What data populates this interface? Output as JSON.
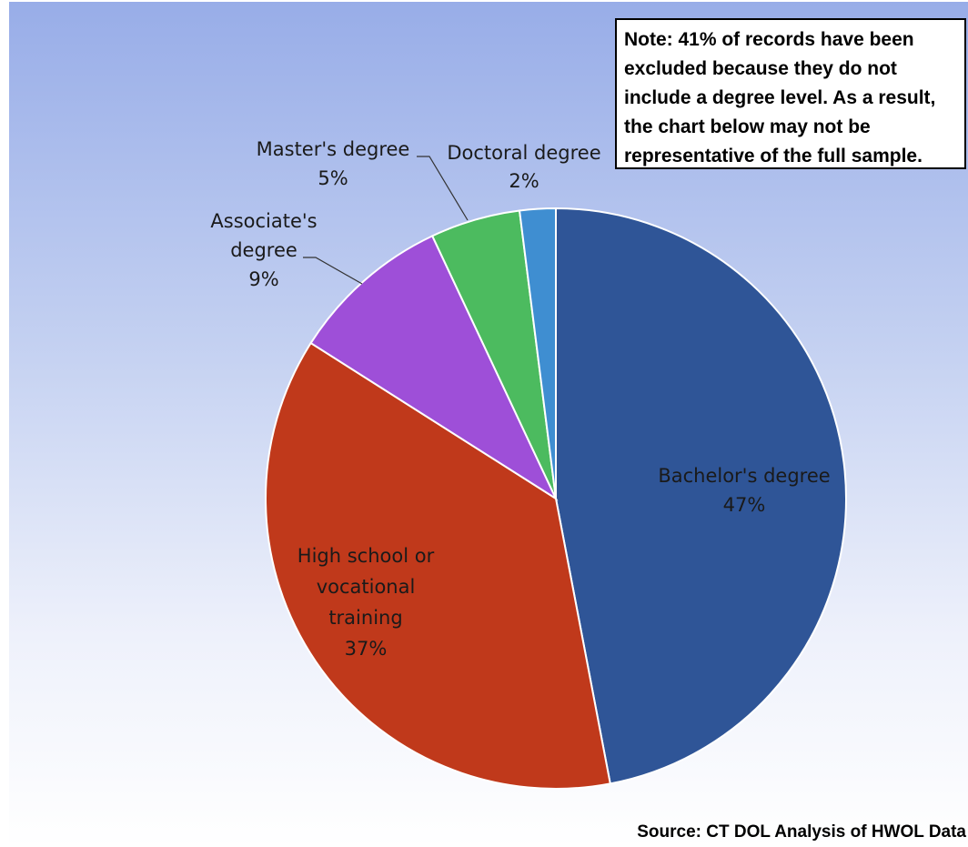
{
  "chart_data": {
    "type": "pie",
    "title": "",
    "slices": [
      {
        "label_lines": [
          "Bachelor's degree"
        ],
        "value_label": "47%",
        "value": 47,
        "color": "#2f5597"
      },
      {
        "label_lines": [
          "High school or",
          "vocational",
          "training"
        ],
        "value_label": "37%",
        "value": 37,
        "color": "#c0391b"
      },
      {
        "label_lines": [
          "Associate's",
          "degree"
        ],
        "value_label": "9%",
        "value": 9,
        "color": "#9e4fd8"
      },
      {
        "label_lines": [
          "Master's degree"
        ],
        "value_label": "5%",
        "value": 5,
        "color": "#4cbb5f"
      },
      {
        "label_lines": [
          "Doctoral degree"
        ],
        "value_label": "2%",
        "value": 2,
        "color": "#3f8ed1"
      }
    ]
  },
  "note": "Note: 41% of records have been\nexcluded because they do not\ninclude a degree level.  As a result,\nthe chart below may not be\nrepresentative of the full sample.",
  "source": "Source: CT DOL Analysis of HWOL Data"
}
